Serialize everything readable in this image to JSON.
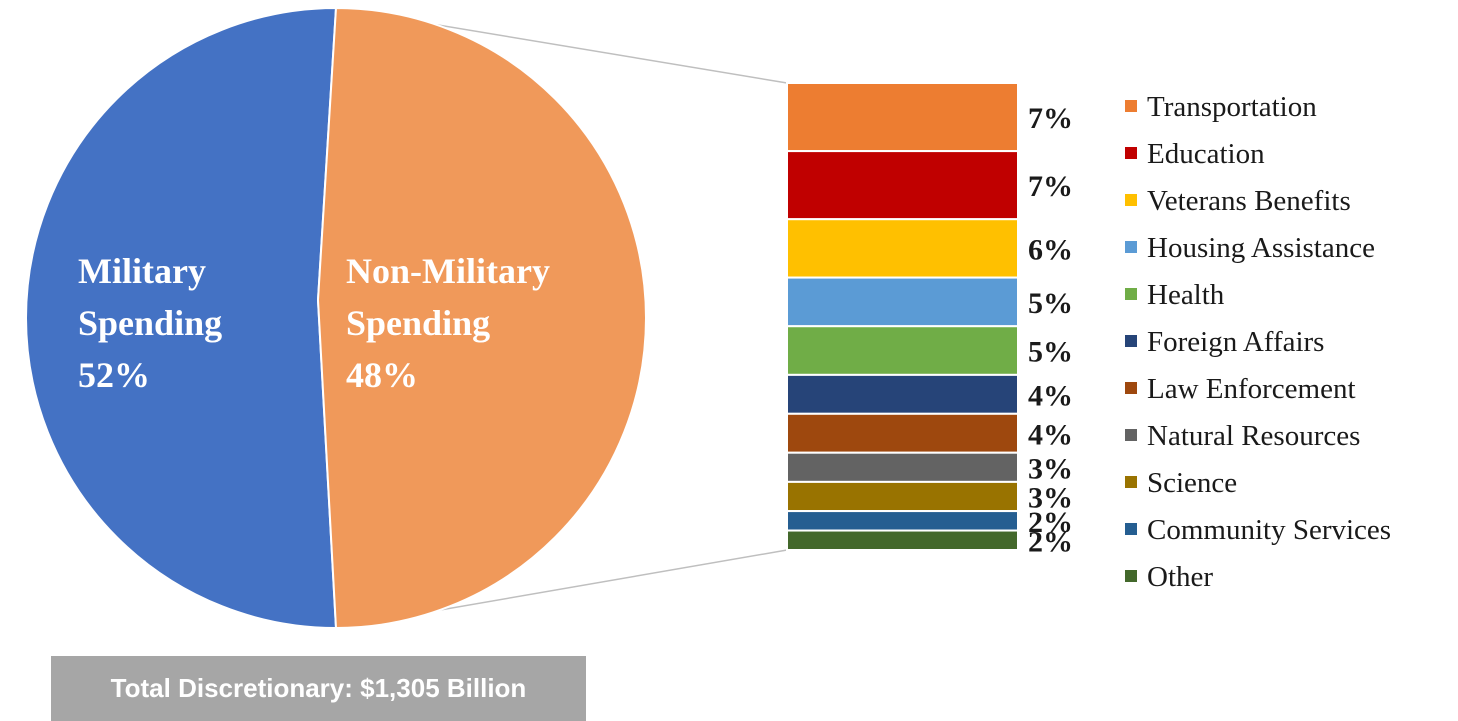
{
  "chart_data": {
    "type": "bar-of-pie",
    "pie": {
      "slices": [
        {
          "label_lines": [
            "Military",
            "Spending",
            "52%"
          ],
          "value": 52,
          "color": "#4472c4"
        },
        {
          "label_lines": [
            "Non-Military",
            "Spending",
            "48%"
          ],
          "value": 48,
          "color": "#f0995a"
        }
      ]
    },
    "breakdown": [
      {
        "name": "Transportation",
        "value": 7,
        "label": "7%",
        "color": "#ed7d31"
      },
      {
        "name": "Education",
        "value": 7,
        "label": "7%",
        "color": "#c00000"
      },
      {
        "name": "Veterans Benefits",
        "value": 6,
        "label": "6%",
        "color": "#ffc000"
      },
      {
        "name": "Housing Assistance",
        "value": 5,
        "label": "5%",
        "color": "#5b9bd5"
      },
      {
        "name": "Health",
        "value": 5,
        "label": "5%",
        "color": "#70ad47"
      },
      {
        "name": "Foreign Affairs",
        "value": 4,
        "label": "4%",
        "color": "#264478"
      },
      {
        "name": "Law Enforcement",
        "value": 4,
        "label": "4%",
        "color": "#9e480e"
      },
      {
        "name": "Natural Resources",
        "value": 3,
        "label": "3%",
        "color": "#636363"
      },
      {
        "name": "Science",
        "value": 3,
        "label": "3%",
        "color": "#997300"
      },
      {
        "name": "Community Services",
        "value": 2,
        "label": "2%",
        "color": "#255e91"
      },
      {
        "name": "Other",
        "value": 2,
        "label": "2%",
        "color": "#43682b"
      }
    ],
    "legend_position": "right"
  },
  "footer": {
    "total_label": "Total Discretionary: $1,305 Billion"
  }
}
